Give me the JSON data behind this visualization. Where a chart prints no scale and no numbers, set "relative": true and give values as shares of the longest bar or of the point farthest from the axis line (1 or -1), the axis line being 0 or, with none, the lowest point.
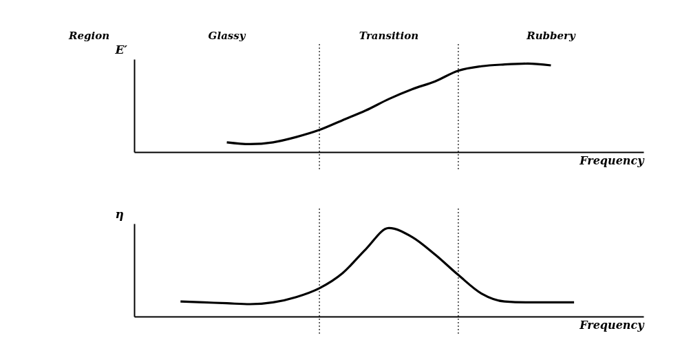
{
  "chart_data": [
    {
      "type": "line",
      "relative": true,
      "ylabel": "E′",
      "xlabel": "Frequency",
      "tick_labels": false,
      "grid": false,
      "legend": false,
      "marker": "none",
      "line_style": "solid",
      "categories": [
        null,
        null,
        null,
        null,
        null,
        null,
        null,
        null,
        null,
        null,
        null,
        null,
        null,
        null,
        null,
        null,
        null,
        null,
        null,
        null,
        null,
        null,
        null
      ],
      "annotations": [
        "Region",
        "Glassy",
        "Transition",
        "Rubbery"
      ],
      "series": [
        {
          "color": "#000000",
          "values": [
            null,
            null,
            null,
            null,
            0.11,
            0.09,
            0.11,
            0.17,
            0.25,
            0.36,
            0.47,
            0.6,
            0.71,
            0.8,
            0.92,
            0.97,
            0.99,
            1,
            0.98,
            null,
            null,
            null,
            null
          ]
        }
      ]
    },
    {
      "type": "line",
      "relative": true,
      "ylabel": "η",
      "xlabel": "Frequency",
      "tick_labels": false,
      "grid": false,
      "legend": false,
      "marker": "none",
      "line_style": "solid",
      "categories": [
        null,
        null,
        null,
        null,
        null,
        null,
        null,
        null,
        null,
        null,
        null,
        null,
        null,
        null,
        null,
        null,
        null,
        null,
        null,
        null,
        null,
        null,
        null
      ],
      "series": [
        {
          "color": "#000000",
          "values": [
            null,
            null,
            0.17,
            0.16,
            0.15,
            0.14,
            0.16,
            0.22,
            0.32,
            0.49,
            0.76,
            1,
            0.9,
            0.7,
            0.47,
            0.26,
            0.17,
            0.16,
            0.16,
            0.16,
            null,
            null,
            null
          ]
        }
      ]
    }
  ]
}
